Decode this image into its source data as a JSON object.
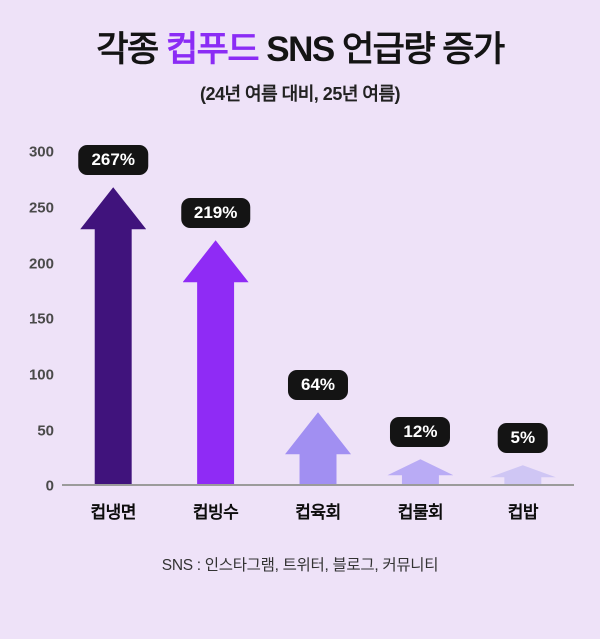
{
  "title": {
    "prefix": "각종 ",
    "highlight": "컵푸드",
    "suffix": " SNS 언급량 증가"
  },
  "subtitle": "(24년 여름 대비, 25년 여름)",
  "footer": "SNS : 인스타그램, 트위터, 블로그, 커뮤니티",
  "colors": {
    "background": "#eee2f8",
    "title_text": "#141414",
    "title_highlight": "#8b2cf5",
    "pill_bg": "#141414",
    "pill_text": "#ffffff",
    "axis_line": "#9b9b9b",
    "tick_text": "#4a4a4a"
  },
  "chart_data": {
    "type": "bar",
    "bar_style": "arrow",
    "title": "각종 컵푸드 SNS 언급량 증가",
    "subtitle": "(24년 여름 대비, 25년 여름)",
    "categories": [
      "컵냉면",
      "컵빙수",
      "컵육회",
      "컵물회",
      "컵밥"
    ],
    "values": [
      267,
      219,
      64,
      12,
      5
    ],
    "labels": [
      "267%",
      "219%",
      "64%",
      "12%",
      "5%"
    ],
    "bar_colors": [
      "#40137c",
      "#8f2bf5",
      "#a18ff2",
      "#b9abf5",
      "#cfc6f4"
    ],
    "xlabel": "",
    "ylabel": "",
    "ylim": [
      0,
      300
    ],
    "yticks": [
      0,
      50,
      100,
      150,
      200,
      250,
      300
    ],
    "grid": false,
    "legend": false,
    "annotation": "SNS : 인스타그램, 트위터, 블로그, 커뮤니티"
  }
}
